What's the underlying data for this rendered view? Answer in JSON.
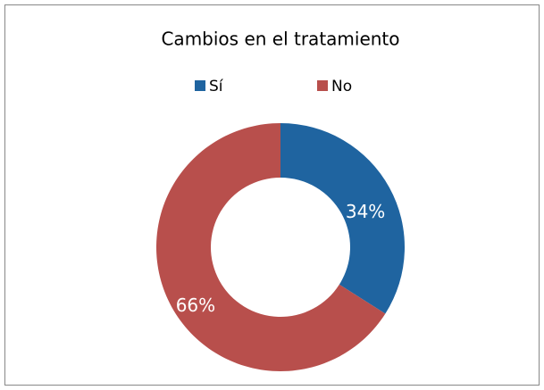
{
  "chart_data": {
    "type": "donut",
    "title": "Cambios en el tratamiento",
    "categories": [
      "Sí",
      "No"
    ],
    "values": [
      34,
      66
    ],
    "value_labels": [
      "34%",
      "66%"
    ],
    "colors": [
      "#1f64a0",
      "#b84f4c"
    ],
    "legend": "top"
  }
}
